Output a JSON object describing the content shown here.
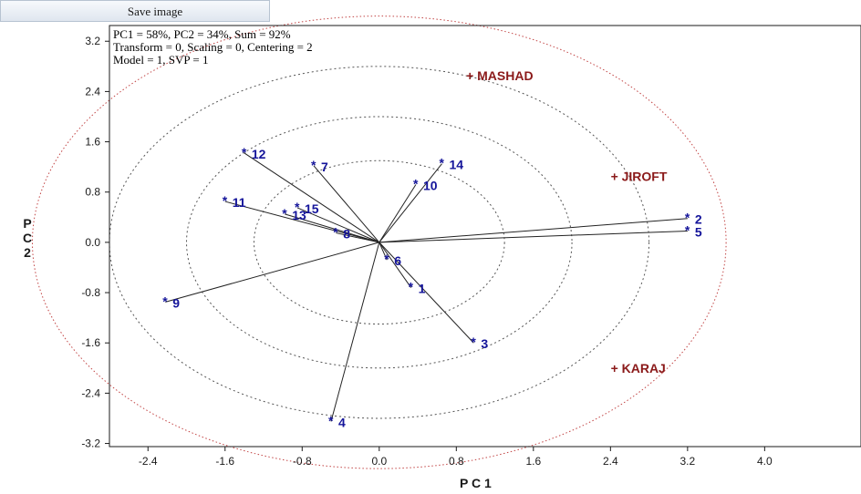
{
  "toolbar": {
    "save_label": "Save image"
  },
  "chart_data": {
    "type": "scatter",
    "title": "",
    "xlabel": "P C 1",
    "ylabel": "P C 2",
    "xlim": [
      -2.8,
      5.0
    ],
    "ylim": [
      -3.25,
      3.45
    ],
    "xticks": [
      -2.4,
      -1.6,
      -0.8,
      0.0,
      0.8,
      1.6,
      2.4,
      3.2,
      4.0
    ],
    "xtick_labels": [
      "-2.4",
      "-1.6",
      "-0.8",
      "0.0",
      "0.8",
      "1.6",
      "2.4",
      "3.2",
      "4.0"
    ],
    "yticks": [
      3.2,
      2.4,
      1.6,
      0.8,
      0.0,
      -0.8,
      -1.6,
      -2.4,
      -3.2
    ],
    "ytick_labels": [
      "3.2",
      "2.4",
      "1.6",
      "0.8",
      "0.0",
      "-0.8",
      "-1.6",
      "-2.4",
      "-3.2"
    ],
    "info_lines": [
      "PC1 = 58%, PC2 = 34%, Sum = 92%",
      "Transform = 0, Scaling = 0, Centering = 2",
      "Model = 1, SVP = 1"
    ],
    "circle_radii": [
      1.3,
      2.0,
      2.8,
      3.6
    ],
    "genotypes": [
      {
        "label": "1",
        "x": 0.33,
        "y": -0.72
      },
      {
        "label": "2",
        "x": 3.2,
        "y": 0.38
      },
      {
        "label": "3",
        "x": 0.98,
        "y": -1.6
      },
      {
        "label": "4",
        "x": -0.5,
        "y": -2.85
      },
      {
        "label": "5",
        "x": 3.2,
        "y": 0.18
      },
      {
        "label": "6",
        "x": 0.08,
        "y": -0.28
      },
      {
        "label": "7",
        "x": -0.68,
        "y": 1.22
      },
      {
        "label": "8",
        "x": -0.45,
        "y": 0.15
      },
      {
        "label": "9",
        "x": -2.22,
        "y": -0.95
      },
      {
        "label": "10",
        "x": 0.38,
        "y": 0.92
      },
      {
        "label": "11",
        "x": -1.6,
        "y": 0.65
      },
      {
        "label": "12",
        "x": -1.4,
        "y": 1.42
      },
      {
        "label": "13",
        "x": -0.98,
        "y": 0.45
      },
      {
        "label": "14",
        "x": 0.65,
        "y": 1.25
      },
      {
        "label": "15",
        "x": -0.85,
        "y": 0.55
      }
    ],
    "environments": [
      {
        "label": "MASHAD",
        "x": 0.95,
        "y": 2.65
      },
      {
        "label": "JIROFT",
        "x": 2.45,
        "y": 1.05
      },
      {
        "label": "KARAJ",
        "x": 2.45,
        "y": -2.0
      }
    ],
    "colors": {
      "genotype": "#14149a",
      "environment": "#8b1a1a",
      "axis": "#1a1a1a"
    }
  }
}
